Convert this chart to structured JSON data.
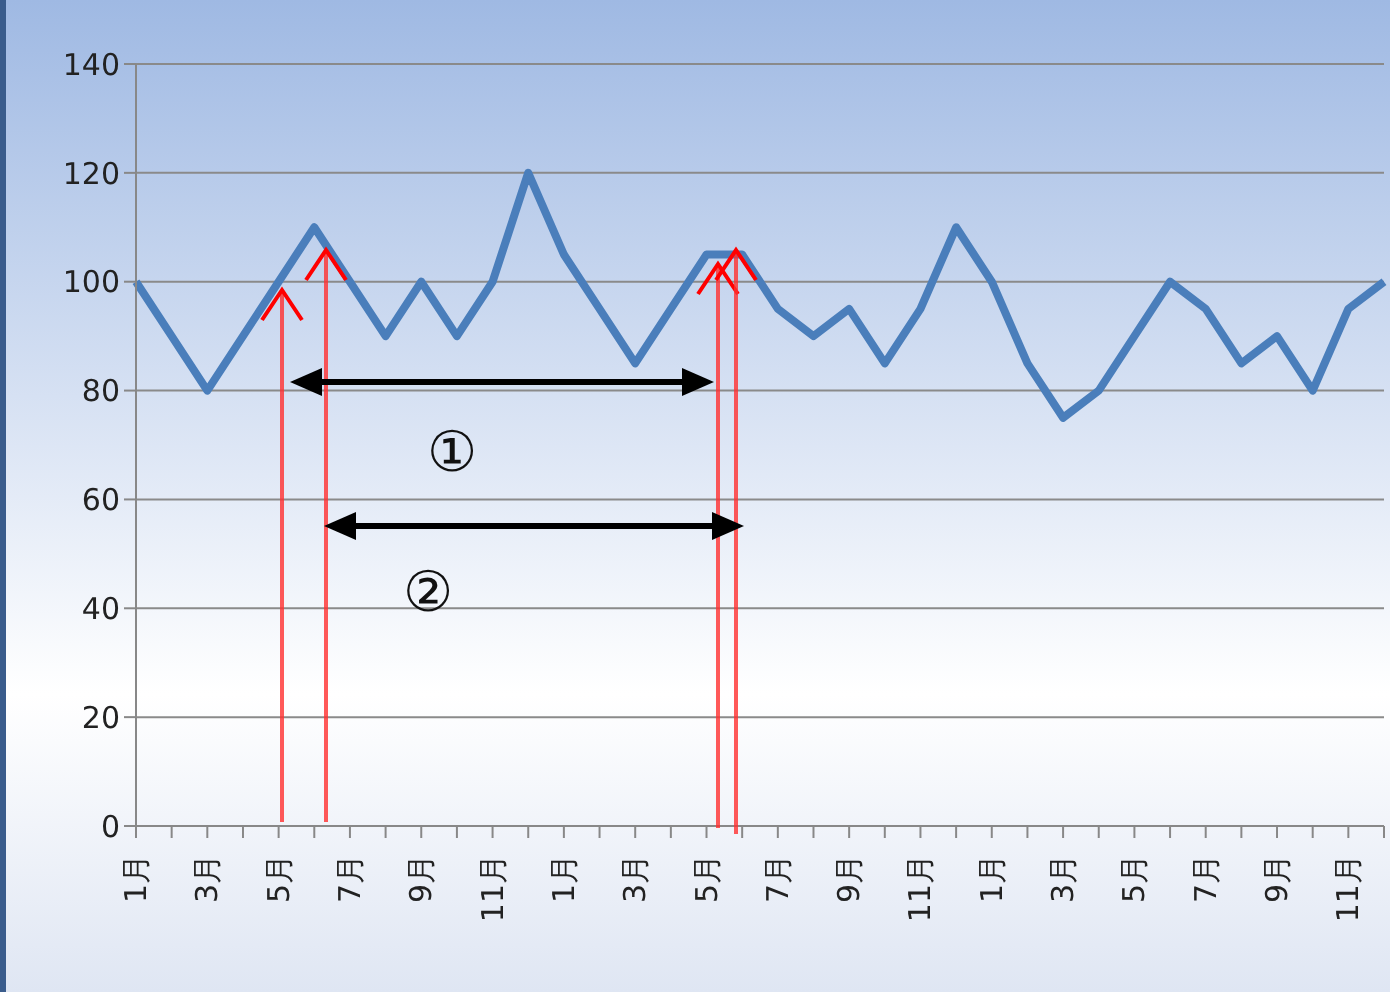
{
  "chart_data": {
    "type": "line",
    "categories": [
      "1月",
      null,
      "3月",
      null,
      "5月",
      null,
      "7月",
      null,
      "9月",
      null,
      "11月",
      null,
      "1月",
      null,
      "3月",
      null,
      "5月",
      null,
      "7月",
      null,
      "9月",
      null,
      "11月",
      null,
      "1月",
      null,
      "3月",
      null,
      "5月",
      null,
      "7月",
      null,
      "9月",
      null,
      "11月",
      null
    ],
    "series": [
      {
        "color": "#4a7ebb",
        "values": [
          100,
          90,
          80,
          90,
          100,
          110,
          100,
          90,
          100,
          90,
          100,
          120,
          105,
          95,
          85,
          95,
          105,
          105,
          95,
          90,
          95,
          85,
          95,
          110,
          100,
          85,
          75,
          80,
          90,
          100,
          95,
          85,
          90,
          80,
          95,
          100
        ]
      }
    ],
    "ylim": [
      0,
      140
    ],
    "yticks": [
      0,
      20,
      40,
      60,
      80,
      100,
      120,
      140
    ],
    "grid": "y",
    "legend": false,
    "marker": "none",
    "line_style": "solid",
    "annotations": [
      "①",
      "②"
    ]
  }
}
